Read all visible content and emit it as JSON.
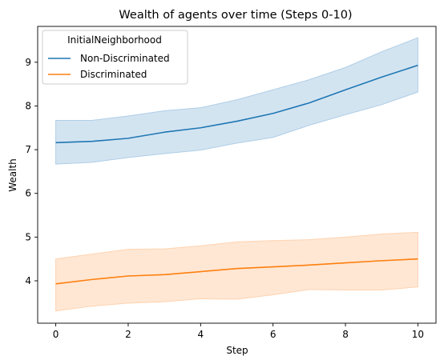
{
  "chart_data": {
    "type": "line",
    "title": "Wealth of agents over time (Steps 0-10)",
    "xlabel": "Step",
    "ylabel": "Wealth",
    "xlim": [
      -0.5,
      10.5
    ],
    "ylim": [
      3.03,
      9.82
    ],
    "x_ticks": [
      0,
      2,
      4,
      6,
      8,
      10
    ],
    "y_ticks": [
      4,
      5,
      6,
      7,
      8,
      9
    ],
    "grid": false,
    "legend": {
      "title": "InitialNeighborhood",
      "placement": "top-left"
    },
    "x": [
      0,
      1,
      2,
      3,
      4,
      5,
      6,
      7,
      8,
      9,
      10
    ],
    "series": [
      {
        "name": "Non-Discriminated",
        "color": "#1f77b4",
        "band_color": "#aecde6",
        "values": [
          7.16,
          7.19,
          7.26,
          7.4,
          7.5,
          7.65,
          7.83,
          8.07,
          8.37,
          8.66,
          8.93
        ],
        "lower": [
          6.67,
          6.71,
          6.82,
          6.91,
          6.99,
          7.15,
          7.28,
          7.56,
          7.8,
          8.03,
          8.32
        ],
        "upper": [
          7.67,
          7.67,
          7.77,
          7.89,
          7.96,
          8.14,
          8.37,
          8.6,
          8.88,
          9.24,
          9.56
        ]
      },
      {
        "name": "Discriminated",
        "color": "#ff7f0e",
        "band_color": "#ffd3b0",
        "values": [
          3.93,
          4.03,
          4.11,
          4.14,
          4.21,
          4.28,
          4.32,
          4.36,
          4.41,
          4.46,
          4.5
        ],
        "lower": [
          3.31,
          3.42,
          3.49,
          3.52,
          3.59,
          3.58,
          3.68,
          3.8,
          3.79,
          3.79,
          3.86
        ],
        "upper": [
          4.5,
          4.61,
          4.72,
          4.73,
          4.8,
          4.89,
          4.92,
          4.94,
          5.0,
          5.07,
          5.11
        ]
      }
    ]
  }
}
